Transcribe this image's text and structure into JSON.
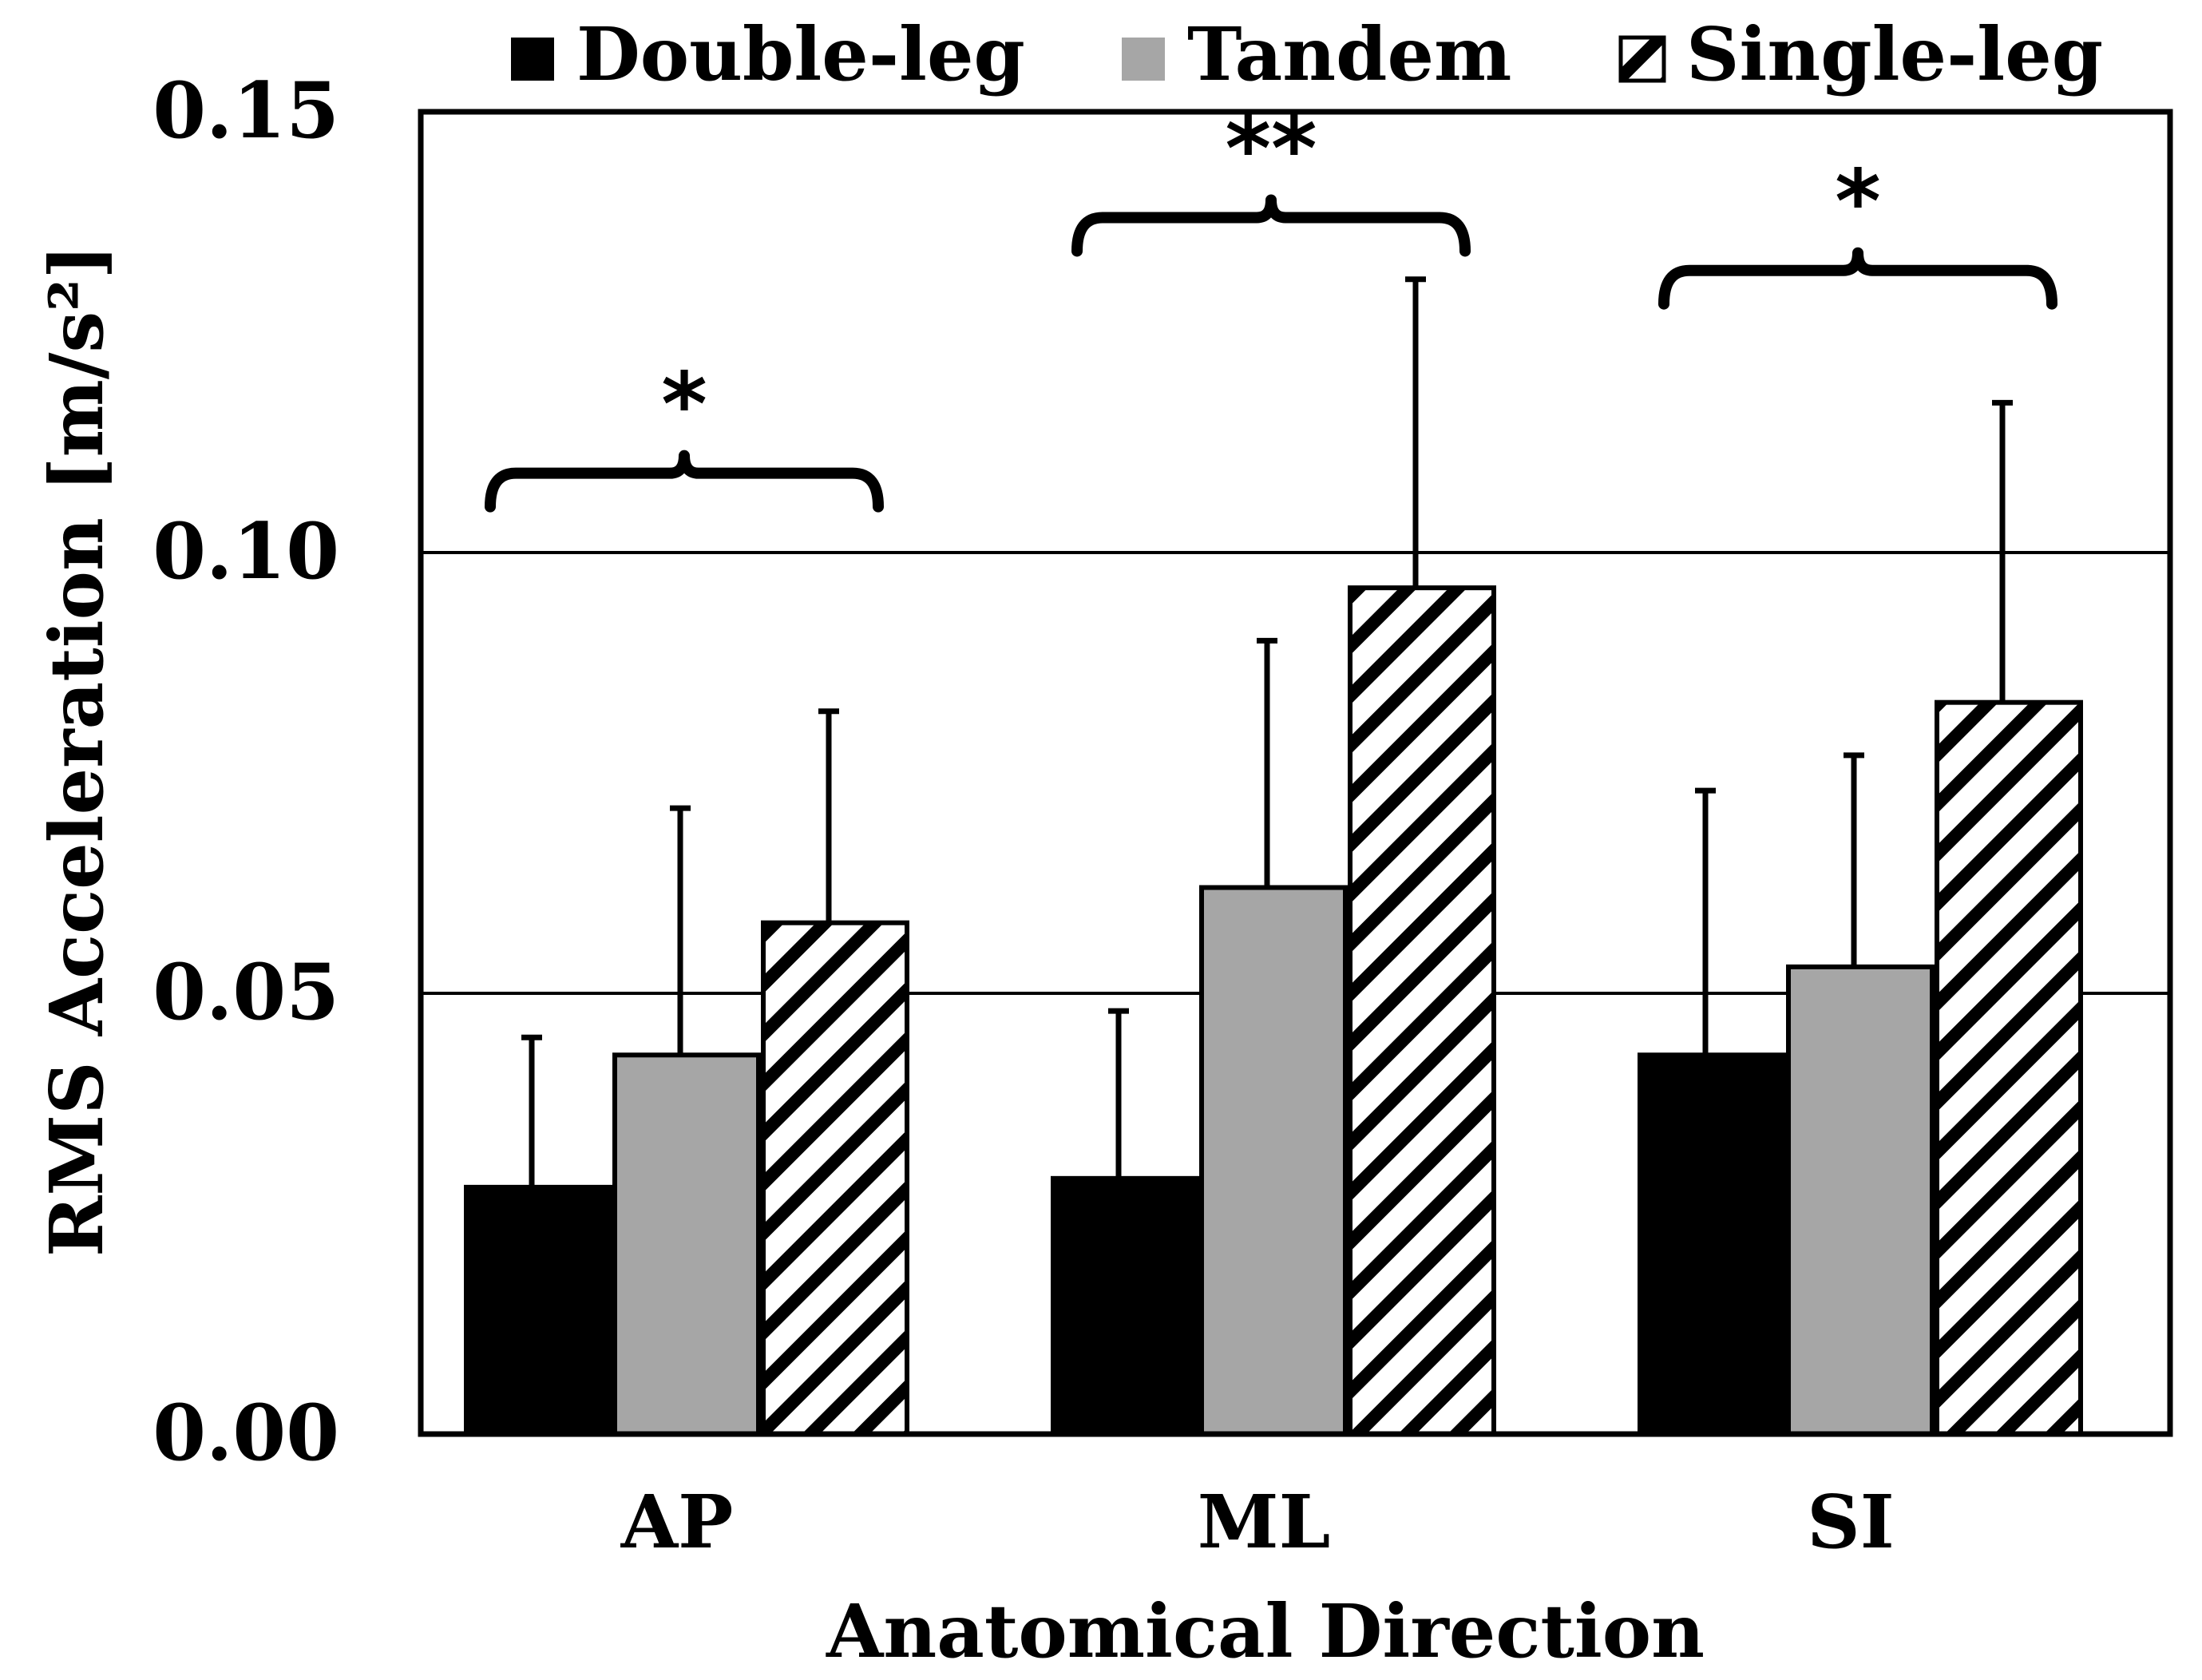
{
  "chart_data": {
    "type": "bar",
    "title": "",
    "xlabel": "Anatomical Direction",
    "ylabel": "RMS Acceleration [m/s²]",
    "ylim": [
      0,
      0.15
    ],
    "yticks": [
      "0.00",
      "0.05",
      "0.10",
      "0.15"
    ],
    "ytick_values": [
      0,
      0.05,
      0.1,
      0.15
    ],
    "gridlines": [
      0.05,
      0.1
    ],
    "grid": true,
    "legend_position": "top",
    "categories": [
      "AP",
      "ML",
      "SI"
    ],
    "series": [
      {
        "name": "Double-leg",
        "pattern": "solid",
        "color": "#000000",
        "values": [
          0.028,
          0.029,
          0.043
        ],
        "errors": [
          0.017,
          0.019,
          0.03
        ]
      },
      {
        "name": "Tandem",
        "pattern": "solid",
        "color": "#a6a6a6",
        "values": [
          0.043,
          0.062,
          0.053
        ],
        "errors": [
          0.028,
          0.028,
          0.024
        ]
      },
      {
        "name": "Single-leg",
        "pattern": "hatch",
        "color": "#ffffff",
        "values": [
          0.058,
          0.096,
          0.083
        ],
        "errors": [
          0.024,
          0.035,
          0.034
        ]
      }
    ],
    "significance": [
      {
        "category": "AP",
        "label": "*",
        "bracket_y": 0.109
      },
      {
        "category": "ML",
        "label": "**",
        "bracket_y": 0.138
      },
      {
        "category": "SI",
        "label": "*",
        "bracket_y": 0.132
      }
    ]
  }
}
